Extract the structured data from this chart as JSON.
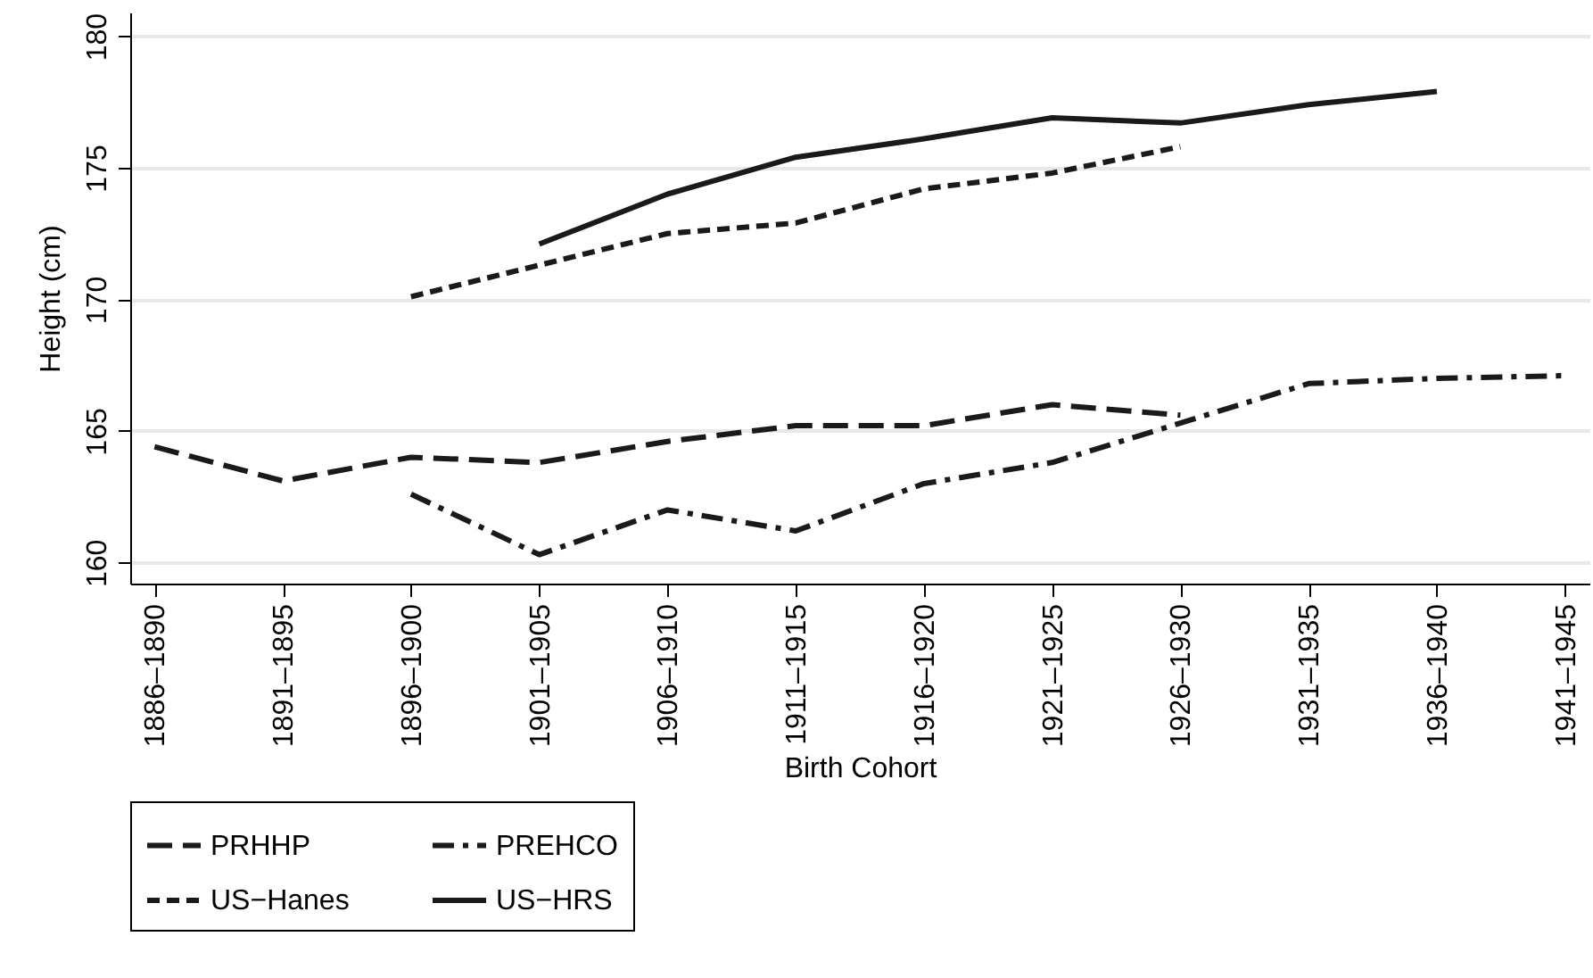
{
  "chart_data": {
    "type": "line",
    "xlabel": "Birth Cohort",
    "ylabel": "Height (cm)",
    "categories": [
      "1886–1890",
      "1891–1895",
      "1896–1900",
      "1901–1905",
      "1906–1910",
      "1911–1915",
      "1916–1920",
      "1921–1925",
      "1926–1930",
      "1931–1935",
      "1936–1940",
      "1941–1945"
    ],
    "series": [
      {
        "name": "PRHHP",
        "color": "#1a1a1a",
        "line_style": "longdash",
        "values": [
          164.4,
          163.1,
          164.0,
          163.8,
          164.6,
          165.2,
          165.2,
          166.0,
          165.6,
          null,
          null,
          null
        ]
      },
      {
        "name": "PREHCO",
        "color": "#1a1a1a",
        "line_style": "dashdot",
        "values": [
          null,
          null,
          162.6,
          160.3,
          162.0,
          161.2,
          163.0,
          163.8,
          165.3,
          166.8,
          167.0,
          167.1
        ]
      },
      {
        "name": "US−Hanes",
        "color": "#1a1a1a",
        "line_style": "dashed",
        "values": [
          null,
          null,
          170.1,
          171.3,
          172.5,
          172.9,
          174.2,
          174.8,
          175.8,
          null,
          null,
          null
        ]
      },
      {
        "name": "US−HRS",
        "color": "#1a1a1a",
        "line_style": "solid",
        "values": [
          null,
          null,
          null,
          172.1,
          174.0,
          175.4,
          176.1,
          176.9,
          176.7,
          177.4,
          177.9,
          null
        ]
      }
    ],
    "ylim": [
      159.2,
      180.9
    ],
    "yticks": [
      160,
      165,
      170,
      175,
      180
    ],
    "grid": "y",
    "legend": "bottom",
    "marker": "none"
  }
}
